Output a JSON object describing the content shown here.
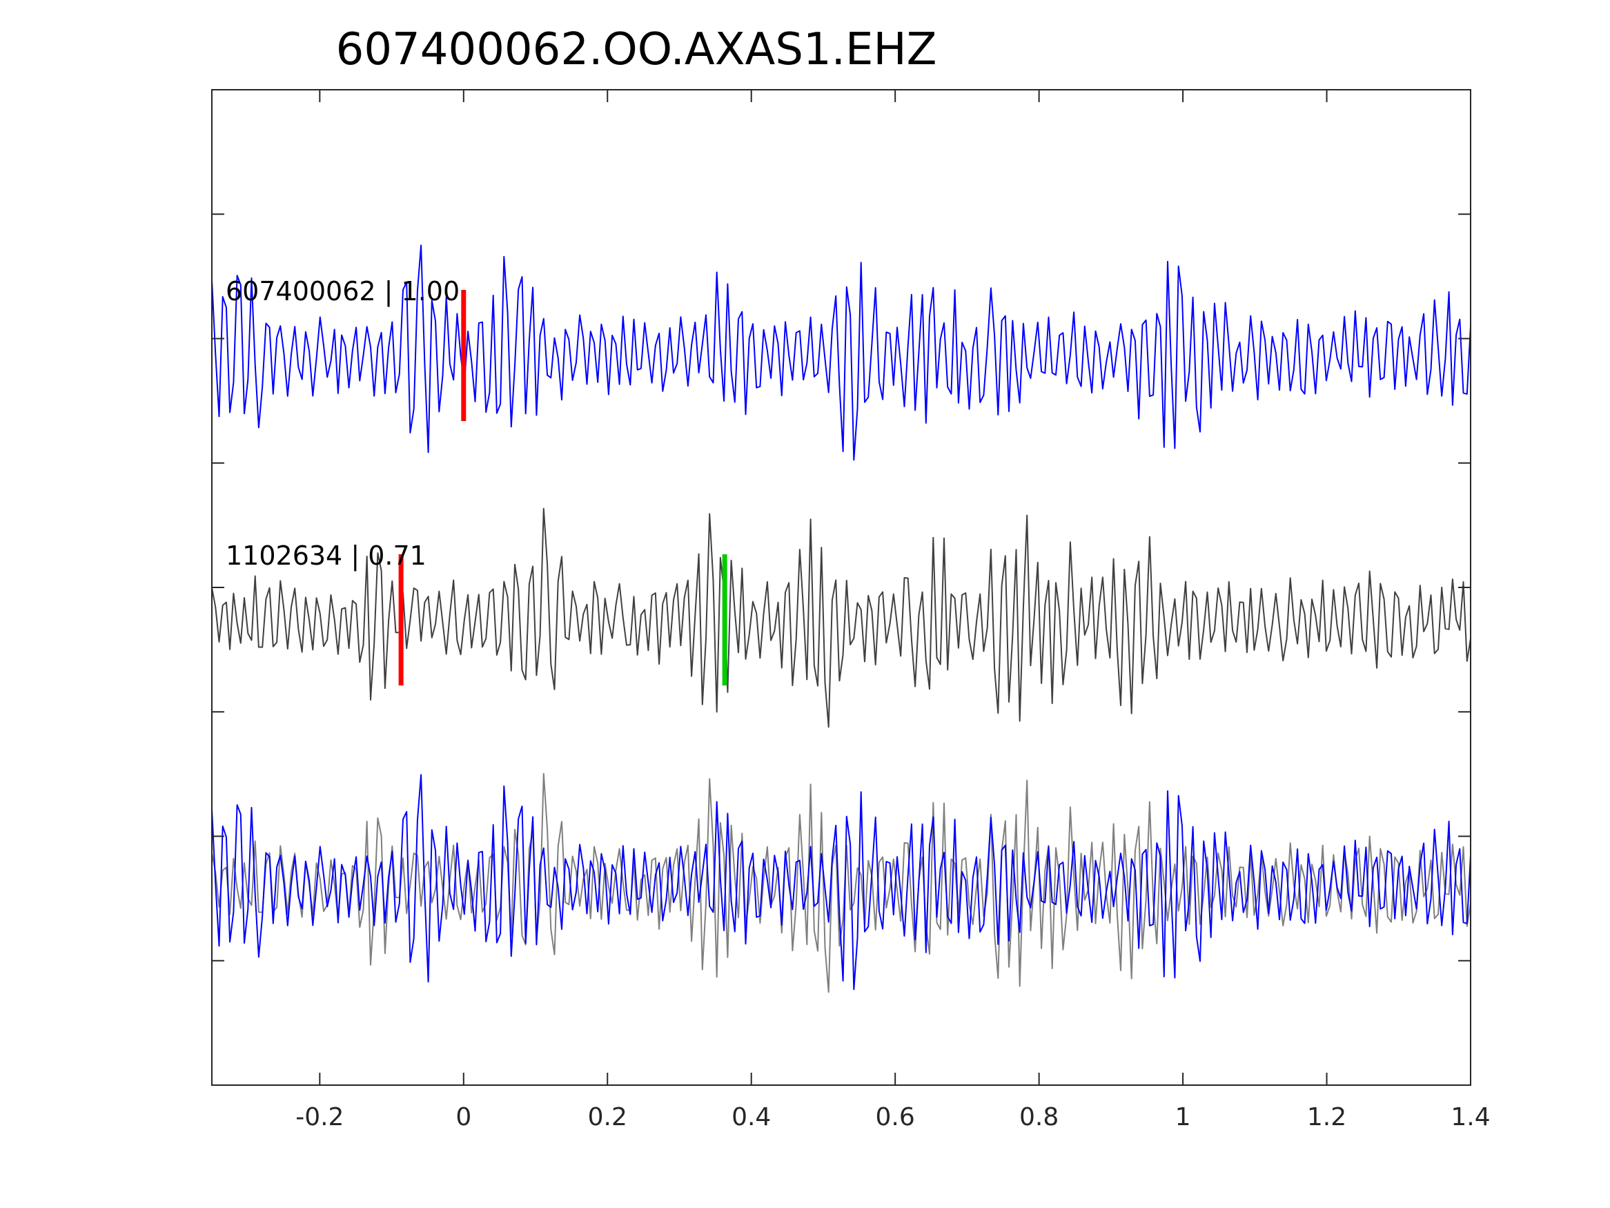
{
  "chart_data": {
    "type": "line",
    "title": "607400062.OO.AXAS1.EHZ",
    "xlabel": "",
    "ylabel": "",
    "xlim": [
      -0.35,
      1.4
    ],
    "x_ticks": [
      -0.2,
      0,
      0.2,
      0.4,
      0.6,
      0.8,
      1,
      1.2,
      1.4
    ],
    "x_tick_labels": [
      "-0.2",
      "0",
      "0.2",
      "0.4",
      "0.6",
      "0.8",
      "1",
      "1.2",
      "1.4"
    ],
    "y_tick_count": 7,
    "y_tick_labels_shown": false,
    "grid": false,
    "colors": {
      "template": "#0000ff",
      "match": "#404040",
      "overlay_match": "#7f7f7f",
      "pick_p": "#ff0000",
      "pick_s": "#00cc00"
    },
    "traces": [
      {
        "label": "607400062 | 1.00",
        "color": "#0000ff",
        "picks": [
          {
            "phase": "P",
            "x": 0.0,
            "color": "#ff0000"
          }
        ]
      },
      {
        "label": "1102634 | 0.71",
        "color": "#404040",
        "picks": [
          {
            "phase": "P",
            "x": -0.087,
            "color": "#ff0000"
          },
          {
            "phase": "S",
            "x": 0.363,
            "color": "#00cc00"
          }
        ]
      },
      {
        "label": "",
        "overlay": true,
        "series": [
          "607400062 | 1.00",
          "1102634 | 0.71"
        ]
      }
    ],
    "sample_rate_hz": 200,
    "samples": 350,
    "waveform_peaks": {
      "607400062 | 1.00": [
        {
          "x": -0.33,
          "y": 0.75
        },
        {
          "x": -0.31,
          "y": 0.8
        },
        {
          "x": -0.06,
          "y": 0.9
        },
        {
          "x": 0.07,
          "y": 0.85
        },
        {
          "x": 0.37,
          "y": 0.65
        },
        {
          "x": 0.54,
          "y": 0.9
        },
        {
          "x": 0.65,
          "y": 0.9
        },
        {
          "x": 0.74,
          "y": 0.72
        },
        {
          "x": 0.98,
          "y": 1.0
        },
        {
          "x": 1.03,
          "y": 0.8
        },
        {
          "x": 1.36,
          "y": 0.55
        }
      ],
      "1102634 | 0.71": [
        {
          "x": -0.13,
          "y": 0.8
        },
        {
          "x": 0.1,
          "y": 0.9
        },
        {
          "x": 0.35,
          "y": 0.88
        },
        {
          "x": 0.49,
          "y": 0.98
        },
        {
          "x": 0.65,
          "y": 0.72
        },
        {
          "x": 0.76,
          "y": 0.95
        },
        {
          "x": 0.82,
          "y": 0.85
        },
        {
          "x": 0.93,
          "y": 0.85
        },
        {
          "x": 1.27,
          "y": 0.55
        }
      ]
    }
  }
}
